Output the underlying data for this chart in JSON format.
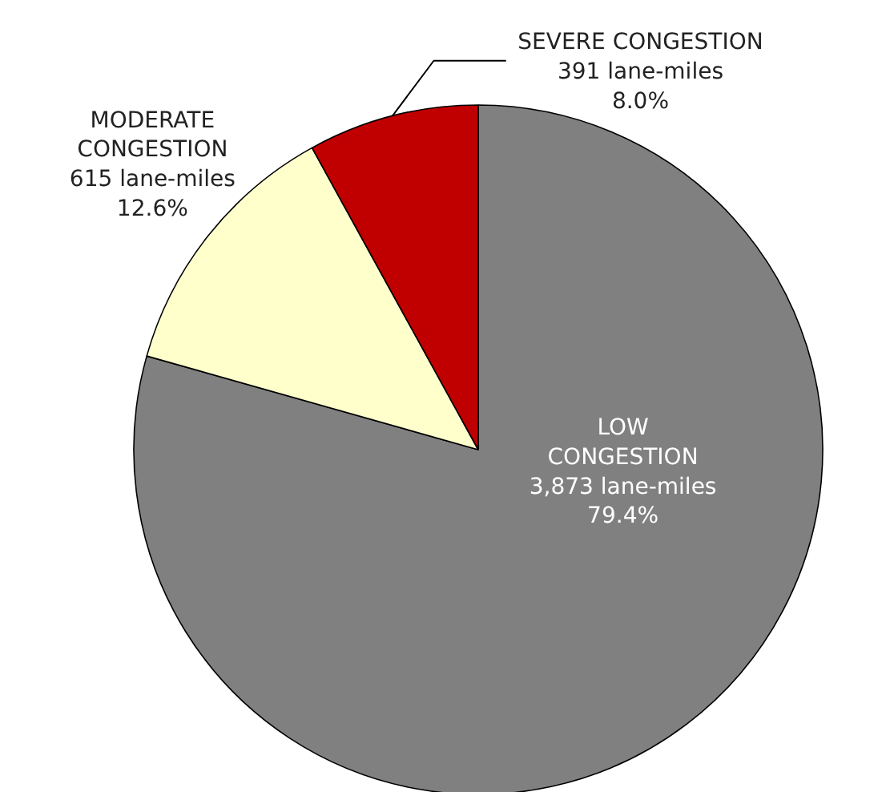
{
  "chart_data": {
    "type": "pie",
    "categories": [
      "LOW\nCONGESTION",
      "MODERATE\nCONGESTION",
      "SEVERE CONGESTION"
    ],
    "values": [
      3873,
      615,
      391
    ],
    "colors": [
      "#808080",
      "#ffffcc",
      "#c00000"
    ],
    "value_labels": [
      "3,873 lane-miles\n79.4%",
      "615 lane-miles\n12.6%",
      "391 lane-miles\n8.0%"
    ]
  }
}
